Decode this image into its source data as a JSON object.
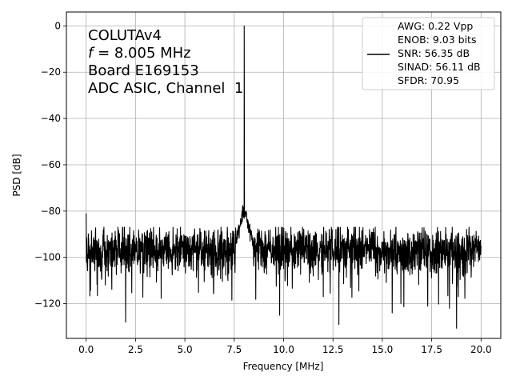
{
  "chart_data": {
    "type": "line",
    "title": "",
    "xlabel": "Frequency [MHz]",
    "ylabel": "PSD [dB]",
    "xlim": [
      -1.0,
      21.0
    ],
    "ylim": [
      -135,
      6
    ],
    "grid": true,
    "x_ticks": [
      0.0,
      2.5,
      5.0,
      7.5,
      10.0,
      12.5,
      15.0,
      17.5,
      20.0
    ],
    "x_tick_labels": [
      "0.0",
      "2.5",
      "5.0",
      "7.5",
      "10.0",
      "12.5",
      "15.0",
      "17.5",
      "20.0"
    ],
    "y_ticks": [
      0,
      -20,
      -40,
      -60,
      -80,
      -100,
      -120
    ],
    "y_tick_labels": [
      "0",
      "−20",
      "−40",
      "−60",
      "−80",
      "−100",
      "−120"
    ],
    "annotations": {
      "line1": "COLUTAv4",
      "line2_symbol": "f",
      "line2_rest": " = 8.005 MHz",
      "line3": "Board E169153",
      "line4": "ADC ASIC, Channel  1"
    },
    "legend": {
      "location": "upper right",
      "lines": [
        "AWG: 0.22 Vpp",
        "ENOB: 9.03 bits",
        "SNR: 56.35 dB",
        "SINAD: 56.11 dB",
        "SFDR: 70.95"
      ]
    },
    "series": [
      {
        "color": "#000000",
        "signal_frequency_mhz": 8.005,
        "signal_peak_db": 0,
        "noise_floor_db": -97,
        "noise_spread_db": 5,
        "dc_value_db": -81,
        "x": [
          0.0,
          20.0
        ],
        "notable_points": [
          {
            "x": 0.0,
            "y": -81
          },
          {
            "x": 2.0,
            "y": -128
          },
          {
            "x": 7.5,
            "y": -94
          },
          {
            "x": 7.8,
            "y": -86
          },
          {
            "x": 7.95,
            "y": -79
          },
          {
            "x": 8.005,
            "y": 0
          },
          {
            "x": 8.1,
            "y": -80
          },
          {
            "x": 8.3,
            "y": -93
          },
          {
            "x": 9.8,
            "y": -125
          },
          {
            "x": 12.8,
            "y": -129
          },
          {
            "x": 15.5,
            "y": -124
          },
          {
            "x": 18.4,
            "y": -122
          },
          {
            "x": 20.0,
            "y": -95
          }
        ]
      }
    ]
  }
}
